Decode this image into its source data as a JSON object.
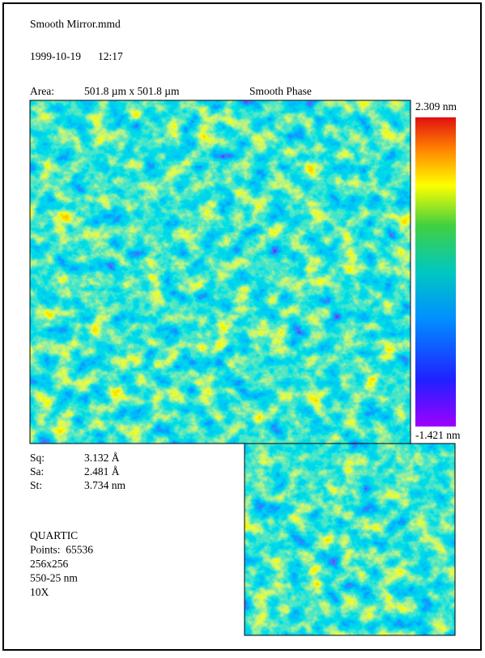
{
  "header": {
    "file": "Smooth Mirror.mmd",
    "date": "1999-10-19",
    "time": "12:17",
    "area_label": "Area:",
    "area": "501.8 µm x 501.8 µm",
    "mode": "Smooth Phase"
  },
  "scale": {
    "max": "2.309 nm",
    "min": "-1.421 nm"
  },
  "stats": [
    {
      "label": "Sq:",
      "value": "3.132 Å"
    },
    {
      "label": "Sa:",
      "value": "2.481 Å"
    },
    {
      "label": "St:",
      "value": "3.734 nm"
    }
  ],
  "info": [
    "QUARTIC",
    "Points:  65536",
    "256x256",
    "550-25 nm",
    "10X"
  ]
}
